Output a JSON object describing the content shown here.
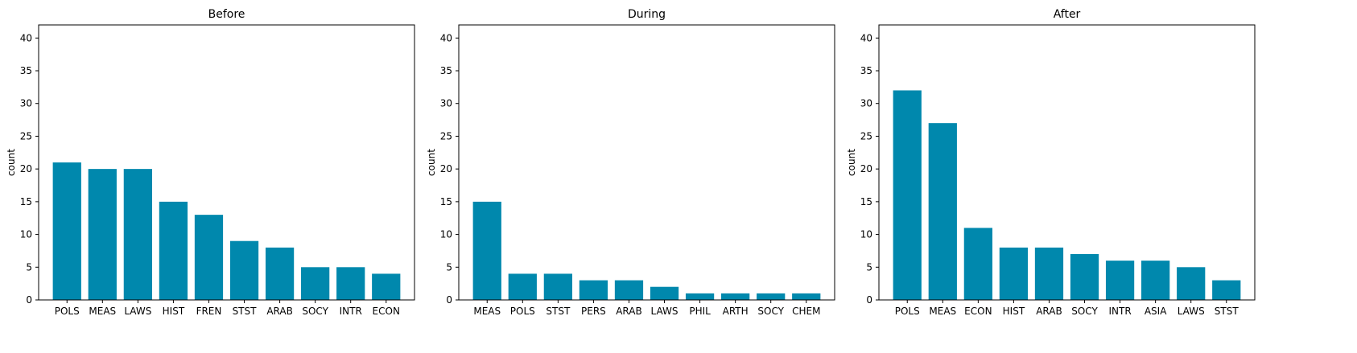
{
  "colors": {
    "bar": "#0088ad",
    "axis": "#000000",
    "background": "#ffffff"
  },
  "chart_data": [
    {
      "type": "bar",
      "title": "Before",
      "xlabel": "",
      "ylabel": "count",
      "ylim": [
        0,
        42
      ],
      "yticks": [
        0,
        5,
        10,
        15,
        20,
        25,
        30,
        35,
        40
      ],
      "grid": false,
      "categories": [
        "POLS",
        "MEAS",
        "LAWS",
        "HIST",
        "FREN",
        "STST",
        "ARAB",
        "SOCY",
        "INTR",
        "ECON"
      ],
      "values": [
        21,
        20,
        20,
        15,
        13,
        9,
        8,
        5,
        5,
        4
      ]
    },
    {
      "type": "bar",
      "title": "During",
      "xlabel": "",
      "ylabel": "count",
      "ylim": [
        0,
        42
      ],
      "yticks": [
        0,
        5,
        10,
        15,
        20,
        25,
        30,
        35,
        40
      ],
      "grid": false,
      "categories": [
        "MEAS",
        "POLS",
        "STST",
        "PERS",
        "ARAB",
        "LAWS",
        "PHIL",
        "ARTH",
        "SOCY",
        "CHEM"
      ],
      "values": [
        15,
        4,
        4,
        3,
        3,
        2,
        1,
        1,
        1,
        1
      ]
    },
    {
      "type": "bar",
      "title": "After",
      "xlabel": "",
      "ylabel": "count",
      "ylim": [
        0,
        42
      ],
      "yticks": [
        0,
        5,
        10,
        15,
        20,
        25,
        30,
        35,
        40
      ],
      "grid": false,
      "categories": [
        "POLS",
        "MEAS",
        "ECON",
        "HIST",
        "ARAB",
        "SOCY",
        "INTR",
        "ASIA",
        "LAWS",
        "STST"
      ],
      "values": [
        32,
        27,
        11,
        8,
        8,
        7,
        6,
        6,
        5,
        3
      ]
    }
  ]
}
